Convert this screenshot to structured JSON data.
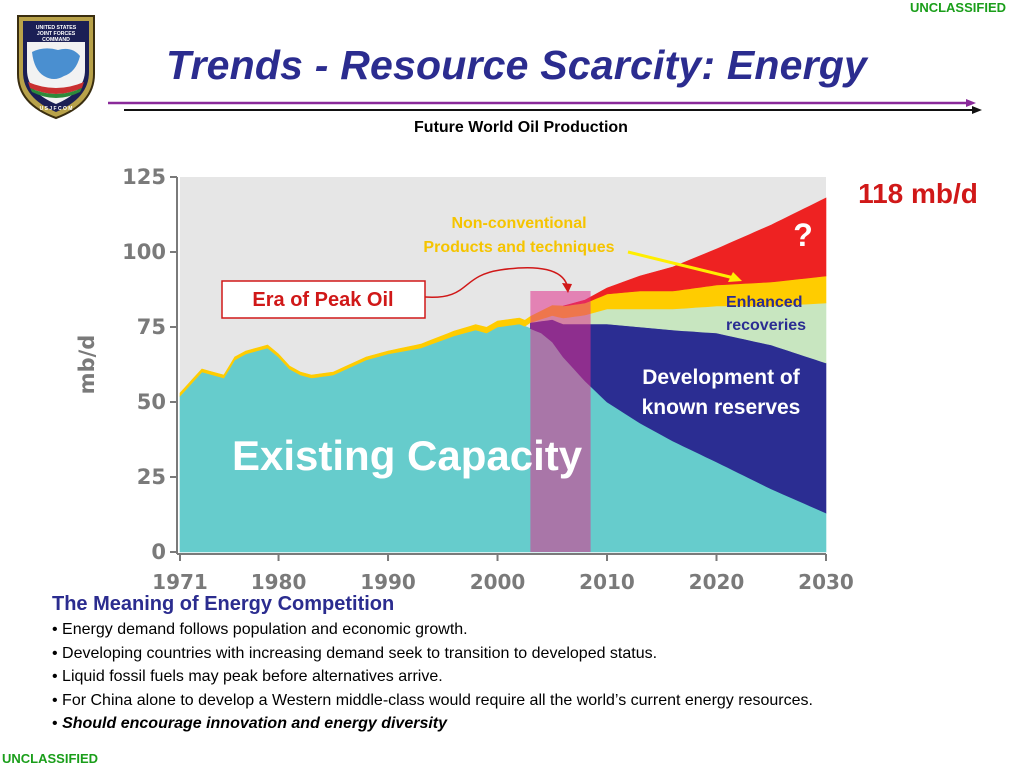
{
  "classification": {
    "top": "UNCLASSIFIED",
    "bottom": "UNCLASSIFIED"
  },
  "logo": {
    "line1": "UNITED STATES",
    "line2": "JOINT FORCES",
    "line3": "COMMAND",
    "ring": "U S J F C O M"
  },
  "slide": {
    "title": "Trends - Resource Scarcity: Energy",
    "subtitle": "Future World Oil Production"
  },
  "chart_data": {
    "type": "area",
    "title": "Future World Oil Production",
    "ylabel": "mb/d",
    "xlabel": "",
    "x_ticks": [
      "1971",
      "1980",
      "1990",
      "2000",
      "2010",
      "2020",
      "2030"
    ],
    "y_ticks": [
      "0",
      "25",
      "50",
      "75",
      "100",
      "125"
    ],
    "xlim": [
      1971,
      2030
    ],
    "ylim": [
      0,
      125
    ],
    "series": [
      {
        "name": "Existing Capacity",
        "color": "#66cccc",
        "x": [
          1971,
          1973,
          1975,
          1976,
          1977,
          1978,
          1979,
          1980,
          1981,
          1982,
          1983,
          1985,
          1988,
          1990,
          1993,
          1996,
          1998,
          1999,
          2000,
          2002,
          2004,
          2005,
          2006,
          2008,
          2010,
          2013,
          2016,
          2020,
          2025,
          2030
        ],
        "values": [
          52,
          60,
          58,
          64,
          66,
          67,
          68,
          65,
          61,
          59,
          58,
          59,
          64,
          66,
          68,
          72,
          74,
          73,
          75,
          76,
          73,
          70,
          65,
          57,
          50,
          43,
          37,
          30,
          21,
          13
        ]
      },
      {
        "name": "Development of known reserves",
        "color": "#2b2d92",
        "x": [
          2003,
          2004,
          2006,
          2008,
          2010,
          2013,
          2016,
          2020,
          2025,
          2030
        ],
        "values": [
          2,
          4,
          11,
          19,
          26,
          32,
          37,
          43,
          48,
          50
        ]
      },
      {
        "name": "Enhanced recoveries",
        "color": "#c8e6c0",
        "x": [
          2003,
          2006,
          2008,
          2010,
          2013,
          2016,
          2020,
          2025,
          2030
        ],
        "values": [
          0,
          2,
          3,
          5,
          6,
          7,
          9,
          13,
          20
        ]
      },
      {
        "name": "Non-conventional Products and techniques",
        "color": "#ffcc00",
        "x": [
          1971,
          1980,
          1990,
          2000,
          2003,
          2006,
          2008,
          2010,
          2013,
          2016,
          2020,
          2025,
          2030
        ],
        "values": [
          1,
          1,
          1,
          2,
          2,
          4,
          4,
          5,
          6,
          6,
          7,
          8,
          9
        ],
        "from_x": 1971
      },
      {
        "name": "?",
        "color": "#ee2222",
        "x": [
          2006,
          2008,
          2010,
          2013,
          2016,
          2020,
          2025,
          2030
        ],
        "values": [
          0,
          1,
          2,
          5,
          8,
          12,
          19,
          26
        ]
      }
    ],
    "peak_band": {
      "x_start": 2003,
      "x_end": 2008.5,
      "y_top": 87
    },
    "labels": {
      "existing": "Existing Capacity",
      "development_line1": "Development of",
      "development_line2": "known reserves",
      "enhanced_line1": "Enhanced",
      "enhanced_line2": "recoveries",
      "nonconv_line1": "Non-conventional",
      "nonconv_line2": "Products and techniques",
      "peak": "Era of Peak Oil",
      "question": "?",
      "total": "118 mb/d"
    }
  },
  "meaning": {
    "heading": "The Meaning of Energy Competition",
    "bullets": [
      "• Energy demand follows population and economic growth.",
      "• Developing countries with increasing demand seek to transition to developed status.",
      "• Liquid fossil fuels may peak before alternatives arrive.",
      "• For China alone to develop a Western middle-class would require all the world’s current energy resources."
    ],
    "bullet_prefix": "•",
    "emphasis": "Should encourage innovation and energy diversity"
  },
  "colors": {
    "title": "#2b2c8f",
    "classification": "#1a9e1a",
    "existing": "#66cccc",
    "development": "#2b2d92",
    "enhanced": "#c8e6c0",
    "nonconventional": "#ffcc00",
    "unknown": "#ee2222",
    "peak_band": "#e0308a"
  }
}
